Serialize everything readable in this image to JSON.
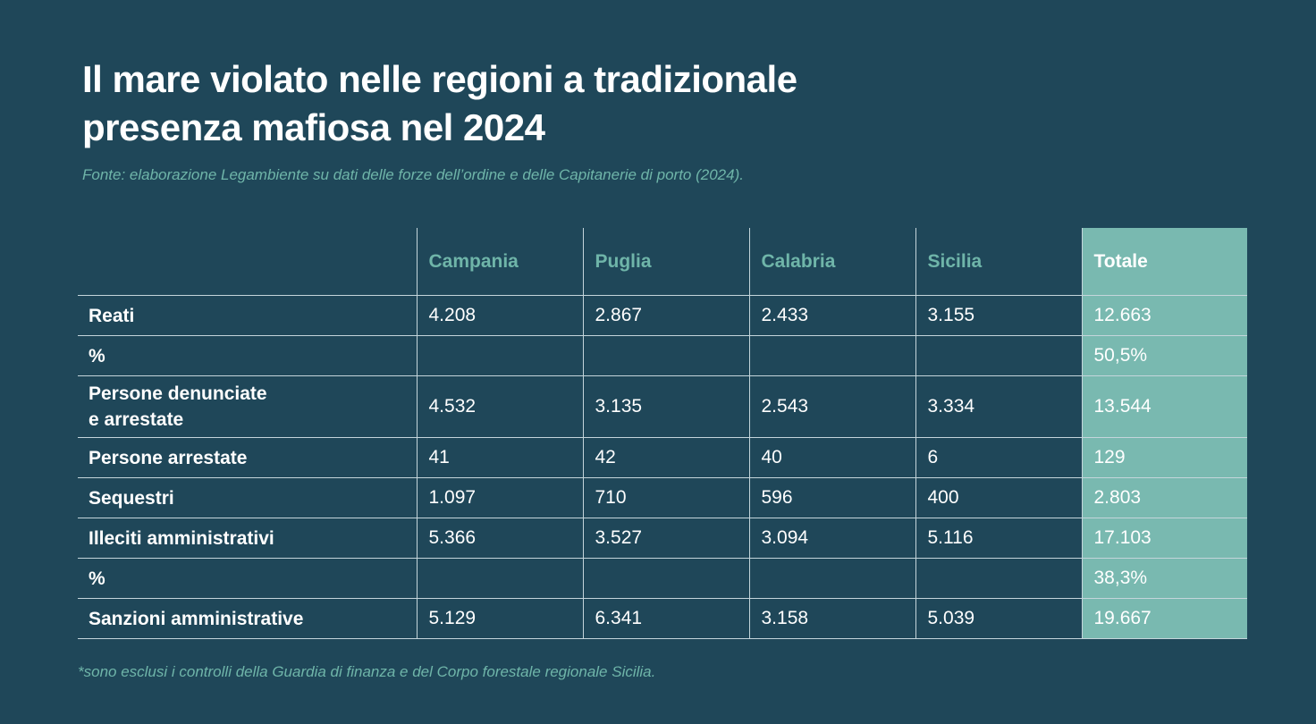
{
  "title_line1": "Il mare violato nelle regioni a tradizionale",
  "title_line2": "presenza mafiosa nel 2024",
  "source": "Fonte: elaborazione Legambiente su dati delle forze dell’ordine e delle Capitanerie di porto (2024).",
  "footnote": "*sono esclusi i controlli della Guardia di finanza e del Corpo forestale regionale Sicilia.",
  "colors": {
    "background": "#1f4759",
    "accent": "#6fb5a9",
    "total_column": "#79b9b0"
  },
  "chart_data": {
    "type": "table",
    "columns": [
      "Campania",
      "Puglia",
      "Calabria",
      "Sicilia",
      "Totale"
    ],
    "rows": [
      {
        "label": "Reati",
        "values": [
          "4.208",
          "2.867",
          "2.433",
          "3.155",
          "12.663"
        ]
      },
      {
        "label": "%",
        "values": [
          "",
          "",
          "",
          "",
          "50,5%"
        ]
      },
      {
        "label": "Persone denunciate e arrestate",
        "label_line1": "Persone denunciate",
        "label_line2": "e arrestate",
        "values": [
          "4.532",
          "3.135",
          "2.543",
          "3.334",
          "13.544"
        ]
      },
      {
        "label": "Persone arrestate",
        "values": [
          "41",
          "42",
          "40",
          "6",
          "129"
        ]
      },
      {
        "label": "Sequestri",
        "values": [
          "1.097",
          "710",
          "596",
          "400",
          "2.803"
        ]
      },
      {
        "label": "Illeciti amministrativi",
        "values": [
          "5.366",
          "3.527",
          "3.094",
          "5.116",
          "17.103"
        ]
      },
      {
        "label": "%",
        "values": [
          "",
          "",
          "",
          "",
          "38,3%"
        ]
      },
      {
        "label": "Sanzioni amministrative",
        "values": [
          "5.129",
          "6.341",
          "3.158",
          "5.039",
          "19.667"
        ]
      }
    ]
  }
}
